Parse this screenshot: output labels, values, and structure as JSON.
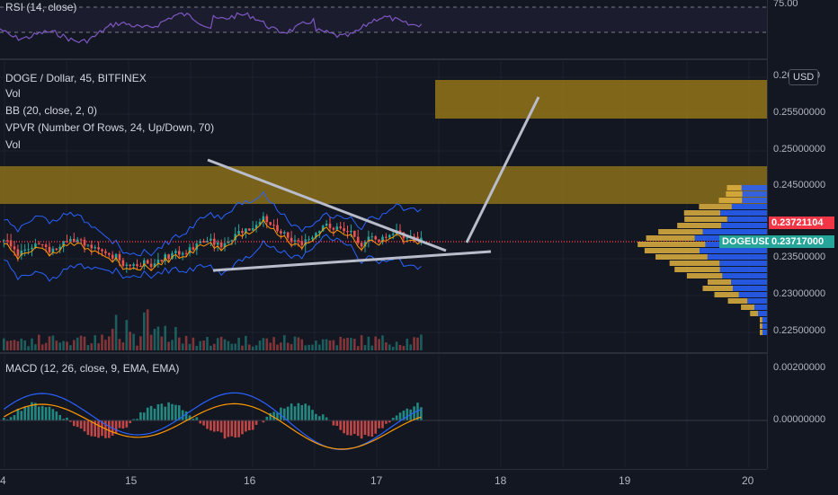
{
  "rsi_pane": {
    "label": "RSI (14, close)",
    "axis_label": "75.00"
  },
  "main_pane": {
    "labels": [
      "DOGE / Dollar, 45, BITFINEX",
      "Vol",
      "BB (20, close, 2, 0)",
      "VPVR (Number Of Rows, 24, Up/Down, 70)",
      "Vol"
    ],
    "currency_button": "USD",
    "price_ticks": [
      "0.2600000",
      "0.25500000",
      "0.25000000",
      "0.24500000",
      "0.23500000",
      "0.23000000",
      "0.22500000"
    ],
    "last_price_tag": "0.23721104",
    "symbol_tag": "DOGEUSD",
    "symbol_price_tag": "0.23717000"
  },
  "macd_pane": {
    "label": "MACD (12, 26, close, 9, EMA, EMA)",
    "price_ticks": [
      "0.00200000",
      "0.00000000"
    ]
  },
  "time_axis": {
    "ticks": [
      "4",
      "15",
      "16",
      "17",
      "18",
      "19",
      "20"
    ]
  },
  "colors": {
    "background": "#131722",
    "candle_up": "#26a69a",
    "candle_down": "#ef5350",
    "bollinger": "#2962ff",
    "orange_line": "#ff9800",
    "zone": "#9b7b18",
    "trend_line": "#b8bccb",
    "last_price": "#f23645",
    "symbol": "#26a69a",
    "vpvr_up": "#2962ff",
    "vpvr_down": "#e0b240"
  },
  "icons": [
    "usd-currency-button"
  ]
}
